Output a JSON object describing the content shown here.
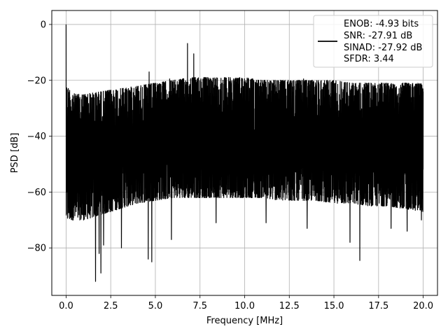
{
  "chart_data": {
    "type": "line",
    "xlabel": "Frequency [MHz]",
    "ylabel": "PSD [dB]",
    "xlim": [
      -0.8,
      20.8
    ],
    "ylim": [
      -97,
      5
    ],
    "xticks": [
      0.0,
      2.5,
      5.0,
      7.5,
      10.0,
      12.5,
      15.0,
      17.5,
      20.0
    ],
    "xtick_labels": [
      "0.0",
      "2.5",
      "5.0",
      "7.5",
      "10.0",
      "12.5",
      "15.0",
      "17.5",
      "20.0"
    ],
    "yticks": [
      0,
      -20,
      -40,
      -60,
      -80
    ],
    "ytick_labels": [
      "0",
      "−20",
      "−40",
      "−60",
      "−80"
    ],
    "grid": true,
    "legend_position": "top-right",
    "series": [
      {
        "legend_lines": [
          "ENOB: -4.93 bits",
          "SNR: -27.91 dB",
          "SINAD: -27.92 dB",
          "SFDR: 3.44"
        ],
        "color": "#000000",
        "x_range": [
          0.0,
          20.0
        ],
        "envelope_upper": [
          [
            0.0,
            -22
          ],
          [
            0.5,
            -25
          ],
          [
            1.0,
            -25
          ],
          [
            2.0,
            -24
          ],
          [
            3.0,
            -23
          ],
          [
            4.0,
            -22
          ],
          [
            5.0,
            -21
          ],
          [
            6.0,
            -20
          ],
          [
            7.0,
            -19
          ],
          [
            8.0,
            -19
          ],
          [
            9.0,
            -19
          ],
          [
            10.0,
            -19
          ],
          [
            11.0,
            -20
          ],
          [
            12.0,
            -20
          ],
          [
            13.0,
            -20
          ],
          [
            14.0,
            -20
          ],
          [
            15.0,
            -20
          ],
          [
            16.0,
            -21
          ],
          [
            17.0,
            -21
          ],
          [
            18.0,
            -21
          ],
          [
            19.0,
            -21
          ],
          [
            20.0,
            -21
          ]
        ],
        "envelope_lower": [
          [
            0.0,
            -70
          ],
          [
            1.0,
            -70
          ],
          [
            2.0,
            -68
          ],
          [
            3.0,
            -66
          ],
          [
            4.0,
            -64
          ],
          [
            5.0,
            -63
          ],
          [
            6.0,
            -62
          ],
          [
            7.0,
            -62
          ],
          [
            8.0,
            -62
          ],
          [
            9.0,
            -62
          ],
          [
            10.0,
            -62
          ],
          [
            11.0,
            -62
          ],
          [
            12.0,
            -63
          ],
          [
            13.0,
            -63
          ],
          [
            14.0,
            -63
          ],
          [
            15.0,
            -64
          ],
          [
            16.0,
            -64
          ],
          [
            17.0,
            -65
          ],
          [
            18.0,
            -65
          ],
          [
            19.0,
            -66
          ],
          [
            20.0,
            -67
          ]
        ],
        "peaks": [
          [
            0.0,
            0.0
          ],
          [
            6.8,
            -6.8
          ],
          [
            7.15,
            -10.5
          ],
          [
            4.65,
            -17
          ],
          [
            5.8,
            -19.5
          ],
          [
            9.1,
            -19
          ],
          [
            13.3,
            -19.5
          ]
        ],
        "dips": [
          [
            1.65,
            -92
          ],
          [
            1.95,
            -89
          ],
          [
            1.85,
            -82
          ],
          [
            4.6,
            -84
          ],
          [
            4.8,
            -85
          ],
          [
            3.1,
            -80
          ],
          [
            5.9,
            -77
          ],
          [
            15.9,
            -78
          ],
          [
            16.45,
            -84.5
          ],
          [
            19.1,
            -74
          ],
          [
            19.9,
            -70
          ],
          [
            2.1,
            -79
          ],
          [
            8.4,
            -71
          ],
          [
            11.2,
            -71
          ],
          [
            13.5,
            -73
          ],
          [
            18.2,
            -73
          ]
        ]
      }
    ]
  }
}
